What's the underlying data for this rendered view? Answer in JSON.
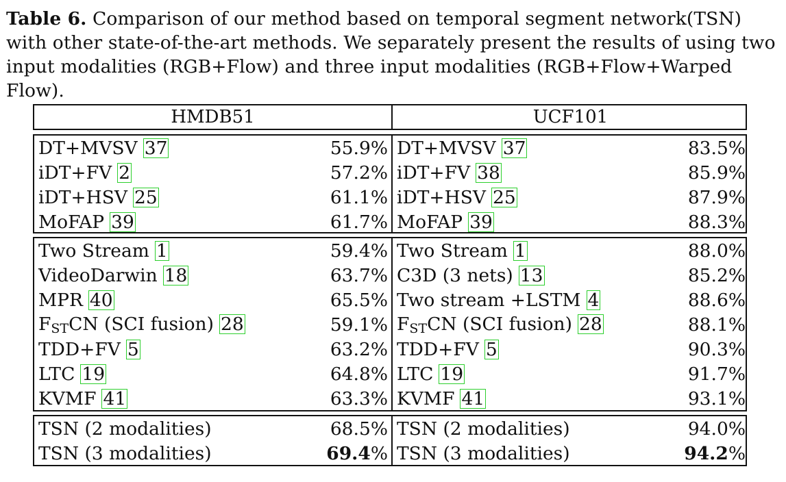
{
  "caption": {
    "label": "Table 6.",
    "text": "Comparison of our method based on temporal segment network(TSN) with other state-of-the-art methods. We separately present the results of using two input modalities (RGB+Flow) and three input modalities (RGB+Flow+Warped Flow)."
  },
  "headers": [
    "HMDB51",
    "UCF101"
  ],
  "groups": [
    {
      "hmdb": [
        {
          "name": "DT+MVSV",
          "ref": "37",
          "value": "55.9%"
        },
        {
          "name": "iDT+FV",
          "ref": "2",
          "value": "57.2%"
        },
        {
          "name": "iDT+HSV",
          "ref": "25",
          "value": "61.1%"
        },
        {
          "name": "MoFAP",
          "ref": "39",
          "value": "61.7%"
        }
      ],
      "ucf": [
        {
          "name": "DT+MVSV",
          "ref": "37",
          "value": "83.5%"
        },
        {
          "name": "iDT+FV",
          "ref": "38",
          "value": "85.9%"
        },
        {
          "name": "iDT+HSV",
          "ref": "25",
          "value": "87.9%"
        },
        {
          "name": "MoFAP",
          "ref": "39",
          "value": "88.3%"
        }
      ]
    },
    {
      "hmdb": [
        {
          "name": "Two Stream",
          "ref": "1",
          "value": "59.4%"
        },
        {
          "name": "VideoDarwin",
          "ref": "18",
          "value": "63.7%"
        },
        {
          "name": "MPR",
          "ref": "40",
          "value": "65.5%"
        },
        {
          "name": "F",
          "sub": "ST",
          "name_rest": "CN (SCI fusion)",
          "ref": "28",
          "value": "59.1%"
        },
        {
          "name": "TDD+FV",
          "ref": "5",
          "value": "63.2%"
        },
        {
          "name": "LTC",
          "ref": "19",
          "value": "64.8%"
        },
        {
          "name": "KVMF",
          "ref": "41",
          "value": "63.3%"
        }
      ],
      "ucf": [
        {
          "name": "Two Stream",
          "ref": "1",
          "value": "88.0%"
        },
        {
          "name": "C3D (3 nets)",
          "ref": "13",
          "value": "85.2%"
        },
        {
          "name": "Two stream +LSTM",
          "ref": "4",
          "value": "88.6%"
        },
        {
          "name": "F",
          "sub": "ST",
          "name_rest": "CN (SCI fusion)",
          "ref": "28",
          "value": "88.1%"
        },
        {
          "name": "TDD+FV",
          "ref": "5",
          "value": "90.3%"
        },
        {
          "name": "LTC",
          "ref": "19",
          "value": "91.7%"
        },
        {
          "name": "KVMF",
          "ref": "41",
          "value": "93.1%"
        }
      ]
    },
    {
      "hmdb": [
        {
          "name": "TSN (2 modalities)",
          "value": "68.5%"
        },
        {
          "name": "TSN (3 modalities)",
          "value_bold": "69.4",
          "value_rest": "%"
        }
      ],
      "ucf": [
        {
          "name": "TSN (2 modalities)",
          "value": "94.0%"
        },
        {
          "name": "TSN (3 modalities)",
          "value_bold": "94.2",
          "value_rest": "%"
        }
      ]
    }
  ],
  "colors": {
    "ref_box": "#2ccf2c",
    "text": "#111111"
  }
}
